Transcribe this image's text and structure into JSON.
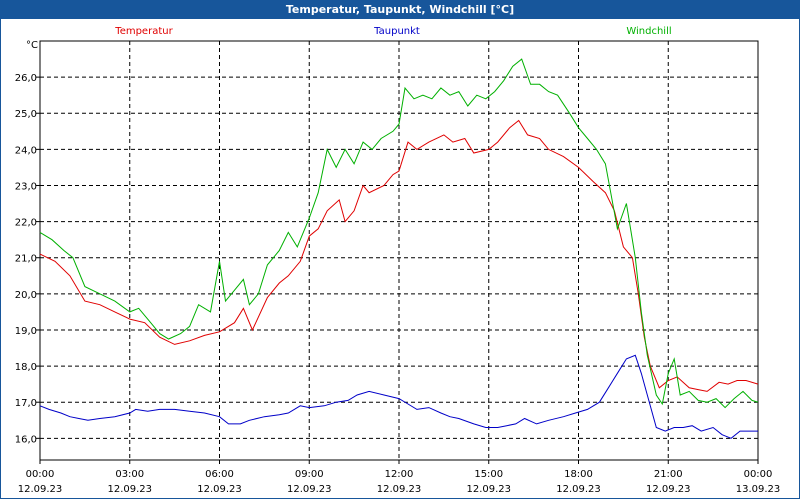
{
  "window": {
    "title": "Temperatur, Taupunkt, Windchill [°C]"
  },
  "colors": {
    "temperatur": "#e00000",
    "taupunkt": "#0000c8",
    "windchill": "#00b000",
    "titlebar": "#17569b"
  },
  "chart_data": {
    "type": "line",
    "title": "Temperatur, Taupunkt, Windchill [°C]",
    "ylabel": "°C",
    "xlabel": "",
    "ylim": [
      15.4,
      27.0
    ],
    "xlim": [
      0,
      24
    ],
    "grid": true,
    "legend_placement": "top",
    "y_ticks": [
      {
        "v": 16.0,
        "label": "16,0"
      },
      {
        "v": 17.0,
        "label": "17,0"
      },
      {
        "v": 18.0,
        "label": "18,0"
      },
      {
        "v": 19.0,
        "label": "19,0"
      },
      {
        "v": 20.0,
        "label": "20,0"
      },
      {
        "v": 21.0,
        "label": "21,0"
      },
      {
        "v": 22.0,
        "label": "22,0"
      },
      {
        "v": 23.0,
        "label": "23,0"
      },
      {
        "v": 24.0,
        "label": "24,0"
      },
      {
        "v": 25.0,
        "label": "25,0"
      },
      {
        "v": 26.0,
        "label": "26,0"
      }
    ],
    "x_ticks": [
      {
        "v": 0,
        "time": "00:00",
        "date": "12.09.23"
      },
      {
        "v": 3,
        "time": "03:00",
        "date": "12.09.23"
      },
      {
        "v": 6,
        "time": "06:00",
        "date": "12.09.23"
      },
      {
        "v": 9,
        "time": "09:00",
        "date": "12.09.23"
      },
      {
        "v": 12,
        "time": "12:00",
        "date": "12.09.23"
      },
      {
        "v": 15,
        "time": "15:00",
        "date": "12.09.23"
      },
      {
        "v": 18,
        "time": "18:00",
        "date": "12.09.23"
      },
      {
        "v": 21,
        "time": "21:00",
        "date": "12.09.23"
      },
      {
        "v": 24,
        "time": "00:00",
        "date": "13.09.23"
      }
    ],
    "x_unit": "hours since 12.09.23 00:00",
    "series": [
      {
        "name": "Temperatur",
        "color": "#e00000",
        "points": [
          [
            0,
            21.1
          ],
          [
            0.5,
            20.9
          ],
          [
            1,
            20.5
          ],
          [
            1.5,
            19.8
          ],
          [
            2,
            19.7
          ],
          [
            2.5,
            19.5
          ],
          [
            3,
            19.3
          ],
          [
            3.5,
            19.2
          ],
          [
            4,
            18.8
          ],
          [
            4.5,
            18.6
          ],
          [
            5,
            18.7
          ],
          [
            5.5,
            18.85
          ],
          [
            6,
            18.95
          ],
          [
            6.5,
            19.2
          ],
          [
            6.8,
            19.6
          ],
          [
            7.1,
            19.0
          ],
          [
            7.6,
            19.9
          ],
          [
            8,
            20.3
          ],
          [
            8.3,
            20.5
          ],
          [
            8.7,
            20.9
          ],
          [
            9,
            21.6
          ],
          [
            9.3,
            21.8
          ],
          [
            9.6,
            22.3
          ],
          [
            10,
            22.6
          ],
          [
            10.2,
            22.0
          ],
          [
            10.5,
            22.3
          ],
          [
            10.8,
            23.0
          ],
          [
            11,
            22.8
          ],
          [
            11.5,
            23.0
          ],
          [
            11.8,
            23.3
          ],
          [
            12,
            23.4
          ],
          [
            12.3,
            24.2
          ],
          [
            12.6,
            24.0
          ],
          [
            13,
            24.2
          ],
          [
            13.5,
            24.4
          ],
          [
            13.8,
            24.2
          ],
          [
            14.2,
            24.3
          ],
          [
            14.5,
            23.9
          ],
          [
            15,
            24.0
          ],
          [
            15.3,
            24.2
          ],
          [
            15.7,
            24.6
          ],
          [
            16.0,
            24.8
          ],
          [
            16.3,
            24.4
          ],
          [
            16.7,
            24.3
          ],
          [
            17.0,
            24.0
          ],
          [
            17.5,
            23.8
          ],
          [
            18,
            23.5
          ],
          [
            18.5,
            23.1
          ],
          [
            18.9,
            22.8
          ],
          [
            19.2,
            22.3
          ],
          [
            19.5,
            21.3
          ],
          [
            19.8,
            21.0
          ],
          [
            20.0,
            20.0
          ],
          [
            20.2,
            18.8
          ],
          [
            20.4,
            18.0
          ],
          [
            20.7,
            17.4
          ],
          [
            21.0,
            17.6
          ],
          [
            21.3,
            17.7
          ],
          [
            21.7,
            17.4
          ],
          [
            22.0,
            17.35
          ],
          [
            22.3,
            17.3
          ],
          [
            22.7,
            17.55
          ],
          [
            23.0,
            17.5
          ],
          [
            23.3,
            17.6
          ],
          [
            23.6,
            17.6
          ],
          [
            24,
            17.5
          ]
        ]
      },
      {
        "name": "Taupunkt",
        "color": "#0000c8",
        "points": [
          [
            0,
            16.9
          ],
          [
            0.3,
            16.8
          ],
          [
            0.7,
            16.7
          ],
          [
            1,
            16.6
          ],
          [
            1.3,
            16.55
          ],
          [
            1.6,
            16.5
          ],
          [
            2,
            16.55
          ],
          [
            2.5,
            16.6
          ],
          [
            3,
            16.7
          ],
          [
            3.2,
            16.8
          ],
          [
            3.6,
            16.75
          ],
          [
            4,
            16.8
          ],
          [
            4.5,
            16.8
          ],
          [
            5,
            16.75
          ],
          [
            5.5,
            16.7
          ],
          [
            6,
            16.6
          ],
          [
            6.3,
            16.4
          ],
          [
            6.7,
            16.4
          ],
          [
            7,
            16.5
          ],
          [
            7.5,
            16.6
          ],
          [
            8,
            16.65
          ],
          [
            8.3,
            16.7
          ],
          [
            8.7,
            16.9
          ],
          [
            9,
            16.85
          ],
          [
            9.5,
            16.9
          ],
          [
            9.9,
            17.0
          ],
          [
            10.3,
            17.05
          ],
          [
            10.6,
            17.2
          ],
          [
            11,
            17.3
          ],
          [
            11.5,
            17.2
          ],
          [
            12,
            17.1
          ],
          [
            12.3,
            16.95
          ],
          [
            12.6,
            16.8
          ],
          [
            13,
            16.85
          ],
          [
            13.4,
            16.7
          ],
          [
            13.7,
            16.6
          ],
          [
            14,
            16.55
          ],
          [
            14.5,
            16.4
          ],
          [
            14.9,
            16.3
          ],
          [
            15.3,
            16.3
          ],
          [
            15.6,
            16.35
          ],
          [
            15.9,
            16.4
          ],
          [
            16.2,
            16.55
          ],
          [
            16.6,
            16.4
          ],
          [
            17,
            16.5
          ],
          [
            17.5,
            16.6
          ],
          [
            17.9,
            16.7
          ],
          [
            18.3,
            16.8
          ],
          [
            18.7,
            17.0
          ],
          [
            19,
            17.4
          ],
          [
            19.3,
            17.8
          ],
          [
            19.6,
            18.2
          ],
          [
            19.9,
            18.3
          ],
          [
            20.1,
            17.8
          ],
          [
            20.3,
            17.2
          ],
          [
            20.6,
            16.3
          ],
          [
            20.9,
            16.2
          ],
          [
            21.2,
            16.3
          ],
          [
            21.5,
            16.3
          ],
          [
            21.8,
            16.35
          ],
          [
            22.1,
            16.2
          ],
          [
            22.5,
            16.3
          ],
          [
            22.8,
            16.1
          ],
          [
            23.1,
            16.0
          ],
          [
            23.4,
            16.2
          ],
          [
            23.7,
            16.2
          ],
          [
            24,
            16.2
          ]
        ]
      },
      {
        "name": "Windchill",
        "color": "#00b000",
        "points": [
          [
            0,
            21.7
          ],
          [
            0.4,
            21.5
          ],
          [
            0.8,
            21.2
          ],
          [
            1.1,
            21.0
          ],
          [
            1.5,
            20.2
          ],
          [
            2,
            20.0
          ],
          [
            2.5,
            19.8
          ],
          [
            3,
            19.5
          ],
          [
            3.3,
            19.6
          ],
          [
            3.7,
            19.2
          ],
          [
            4,
            18.9
          ],
          [
            4.3,
            18.75
          ],
          [
            4.7,
            18.9
          ],
          [
            5,
            19.1
          ],
          [
            5.3,
            19.7
          ],
          [
            5.7,
            19.5
          ],
          [
            6,
            20.9
          ],
          [
            6.2,
            19.8
          ],
          [
            6.5,
            20.1
          ],
          [
            6.8,
            20.4
          ],
          [
            7,
            19.7
          ],
          [
            7.3,
            20.0
          ],
          [
            7.6,
            20.8
          ],
          [
            8,
            21.2
          ],
          [
            8.3,
            21.7
          ],
          [
            8.6,
            21.3
          ],
          [
            9,
            22.1
          ],
          [
            9.3,
            22.8
          ],
          [
            9.6,
            24.0
          ],
          [
            9.9,
            23.5
          ],
          [
            10.2,
            24.0
          ],
          [
            10.5,
            23.6
          ],
          [
            10.8,
            24.2
          ],
          [
            11.1,
            24.0
          ],
          [
            11.4,
            24.3
          ],
          [
            11.8,
            24.5
          ],
          [
            12.0,
            24.7
          ],
          [
            12.2,
            25.7
          ],
          [
            12.5,
            25.4
          ],
          [
            12.8,
            25.5
          ],
          [
            13.1,
            25.4
          ],
          [
            13.4,
            25.7
          ],
          [
            13.7,
            25.5
          ],
          [
            14.0,
            25.6
          ],
          [
            14.3,
            25.2
          ],
          [
            14.6,
            25.5
          ],
          [
            14.9,
            25.4
          ],
          [
            15.2,
            25.6
          ],
          [
            15.5,
            25.9
          ],
          [
            15.8,
            26.3
          ],
          [
            16.1,
            26.5
          ],
          [
            16.4,
            25.8
          ],
          [
            16.7,
            25.8
          ],
          [
            17.0,
            25.6
          ],
          [
            17.3,
            25.5
          ],
          [
            17.7,
            25.0
          ],
          [
            18.0,
            24.6
          ],
          [
            18.3,
            24.3
          ],
          [
            18.6,
            24.0
          ],
          [
            18.9,
            23.6
          ],
          [
            19.1,
            22.7
          ],
          [
            19.3,
            21.8
          ],
          [
            19.6,
            22.5
          ],
          [
            19.9,
            21.0
          ],
          [
            20.1,
            19.5
          ],
          [
            20.3,
            18.3
          ],
          [
            20.6,
            17.2
          ],
          [
            20.8,
            16.95
          ],
          [
            21.0,
            17.8
          ],
          [
            21.2,
            18.2
          ],
          [
            21.4,
            17.2
          ],
          [
            21.7,
            17.3
          ],
          [
            22.0,
            17.05
          ],
          [
            22.3,
            17.0
          ],
          [
            22.6,
            17.1
          ],
          [
            22.9,
            16.85
          ],
          [
            23.2,
            17.1
          ],
          [
            23.5,
            17.3
          ],
          [
            23.8,
            17.05
          ],
          [
            24,
            17.0
          ]
        ]
      }
    ]
  }
}
